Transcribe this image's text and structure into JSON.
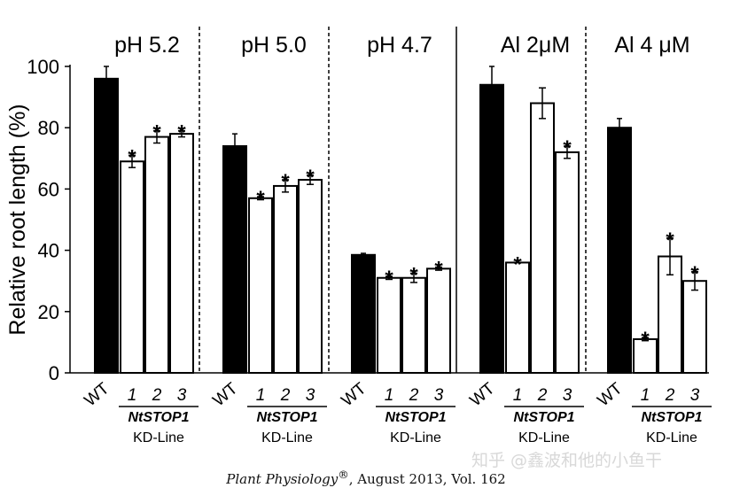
{
  "chart_data": {
    "type": "bar",
    "ylabel": "Relative root length (%)",
    "ylim": [
      0,
      100
    ],
    "yticks": [
      0,
      20,
      40,
      60,
      80,
      100
    ],
    "categories": [
      "WT",
      "1",
      "2",
      "3"
    ],
    "group_label": "NtSTOP1",
    "group_sublabel": "KD-Line",
    "panels": [
      {
        "title": "pH 5.2",
        "values": [
          96,
          69,
          77,
          78
        ],
        "errors": [
          4,
          2,
          2,
          1
        ],
        "significant": [
          false,
          true,
          true,
          true
        ]
      },
      {
        "title": "pH 5.0",
        "values": [
          74,
          57,
          61,
          63
        ],
        "errors": [
          4,
          0.5,
          2,
          1.5
        ],
        "significant": [
          false,
          true,
          true,
          true
        ]
      },
      {
        "title": "pH 4.7",
        "values": [
          38.5,
          31,
          31,
          34
        ],
        "errors": [
          0.5,
          0.5,
          1.5,
          0.5
        ],
        "significant": [
          false,
          true,
          true,
          true
        ]
      },
      {
        "title": "Al 2μM",
        "values": [
          94,
          36,
          88,
          72
        ],
        "errors": [
          6,
          0,
          5,
          2
        ],
        "significant": [
          false,
          true,
          false,
          true
        ]
      },
      {
        "title": "Al 4 μM",
        "values": [
          80,
          11,
          38,
          30
        ],
        "errors": [
          3,
          0.5,
          6,
          3
        ],
        "significant": [
          false,
          true,
          true,
          true
        ]
      }
    ],
    "colors": {
      "wt": "#000000",
      "kd": "#ffffff",
      "stroke": "#000000"
    },
    "significance_marker": "*"
  },
  "caption": {
    "journal": "Plant Physiology",
    "mark": "®",
    "rest": ", August 2013, Vol. 162"
  },
  "watermark": "知乎 @鑫波和他的小鱼干"
}
